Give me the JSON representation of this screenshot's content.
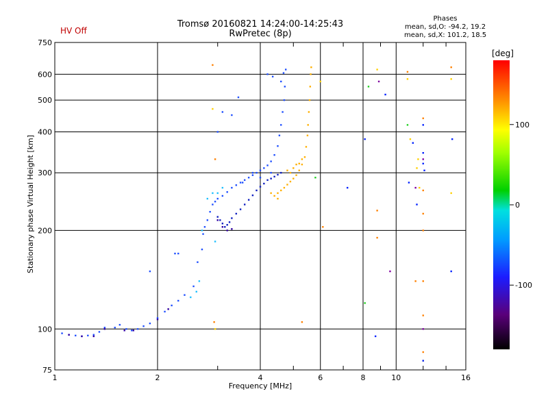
{
  "header": {
    "title_line1": "Tromsø 20160821 14:24:00-14:25:43",
    "title_line2": "RwPretec (8p)",
    "status": "HV Off"
  },
  "phases": {
    "heading": "Phases",
    "line_o": "mean, sd,O: -94.2, 19.2",
    "line_x": "mean, sd,X: 101.2, 18.5"
  },
  "chart_data": {
    "type": "scatter",
    "xlabel": "Frequency [MHz]",
    "ylabel": "Stationary phase Virtual Height [km]",
    "xscale": "log",
    "yscale": "log",
    "xlim": [
      1,
      16
    ],
    "ylim": [
      75,
      750
    ],
    "x_ticks": [
      1,
      2,
      4,
      6,
      8,
      10,
      16
    ],
    "x_minor": [
      3,
      5,
      7,
      9,
      12,
      14
    ],
    "y_ticks": [
      75,
      100,
      200,
      300,
      400,
      500,
      600,
      750
    ],
    "colorbar": {
      "label": "[deg]",
      "range": [
        -180,
        180
      ],
      "ticks": [
        100,
        0,
        -100
      ]
    },
    "grid": true,
    "series": [
      {
        "color": "#2050ff",
        "points": [
          [
            1.05,
            97
          ],
          [
            1.1,
            96
          ],
          [
            1.15,
            95.5
          ],
          [
            1.2,
            95
          ],
          [
            1.25,
            95.5
          ],
          [
            1.3,
            96
          ],
          [
            1.35,
            98
          ],
          [
            1.4,
            101
          ],
          [
            1.5,
            101
          ],
          [
            1.55,
            103
          ],
          [
            1.62,
            100
          ],
          [
            1.68,
            99
          ],
          [
            1.75,
            100
          ],
          [
            1.82,
            102
          ],
          [
            1.9,
            104
          ],
          [
            2.0,
            108
          ],
          [
            2.1,
            113
          ],
          [
            2.2,
            118
          ],
          [
            2.3,
            122
          ],
          [
            2.4,
            127
          ],
          [
            2.55,
            135
          ],
          [
            2.62,
            160
          ],
          [
            2.7,
            175
          ],
          [
            2.72,
            195
          ],
          [
            2.75,
            205
          ],
          [
            2.8,
            215
          ],
          [
            2.85,
            228
          ],
          [
            2.9,
            240
          ],
          [
            2.95,
            245
          ],
          [
            3.0,
            250
          ],
          [
            3.1,
            255
          ],
          [
            3.2,
            262
          ],
          [
            3.3,
            270
          ],
          [
            3.4,
            275
          ],
          [
            3.5,
            280
          ],
          [
            3.6,
            285
          ],
          [
            3.7,
            290
          ],
          [
            3.8,
            295
          ],
          [
            3.9,
            300
          ],
          [
            4.0,
            305
          ],
          [
            4.1,
            310
          ],
          [
            4.2,
            316
          ],
          [
            4.3,
            325
          ],
          [
            4.4,
            340
          ],
          [
            4.5,
            362
          ],
          [
            4.55,
            390
          ],
          [
            4.6,
            420
          ],
          [
            4.65,
            460
          ],
          [
            4.7,
            500
          ],
          [
            4.72,
            550
          ],
          [
            4.75,
            620
          ],
          [
            2.25,
            170
          ],
          [
            2.3,
            170
          ],
          [
            1.9,
            150
          ],
          [
            3.0,
            400
          ],
          [
            3.1,
            460
          ],
          [
            3.3,
            450
          ],
          [
            3.45,
            510
          ],
          [
            4.2,
            600
          ],
          [
            4.35,
            590
          ],
          [
            4.6,
            570
          ],
          [
            4.68,
            605
          ],
          [
            3.55,
            280
          ],
          [
            3.8,
            300
          ],
          [
            4.0,
            290
          ],
          [
            4.3,
            300
          ]
        ]
      },
      {
        "color": "#1020c0",
        "points": [
          [
            3.0,
            220
          ],
          [
            3.05,
            215
          ],
          [
            3.1,
            210
          ],
          [
            3.15,
            205
          ],
          [
            3.2,
            208
          ],
          [
            3.25,
            212
          ],
          [
            3.3,
            218
          ],
          [
            3.4,
            225
          ],
          [
            3.5,
            232
          ],
          [
            3.6,
            240
          ],
          [
            3.7,
            248
          ],
          [
            3.8,
            256
          ],
          [
            3.9,
            265
          ],
          [
            4.0,
            272
          ],
          [
            4.1,
            278
          ],
          [
            4.2,
            285
          ],
          [
            4.3,
            288
          ],
          [
            4.4,
            292
          ],
          [
            4.5,
            296
          ],
          [
            4.6,
            300
          ]
        ]
      },
      {
        "color": "#3000a0",
        "points": [
          [
            1.1,
            96
          ],
          [
            1.2,
            95
          ],
          [
            1.3,
            95
          ],
          [
            1.4,
            100
          ],
          [
            1.6,
            99
          ],
          [
            1.7,
            99
          ],
          [
            2.0,
            107
          ],
          [
            2.15,
            115
          ],
          [
            3.0,
            215
          ],
          [
            3.1,
            205
          ],
          [
            3.2,
            200
          ],
          [
            3.3,
            202
          ]
        ]
      },
      {
        "color": "#20c0ff",
        "points": [
          [
            2.5,
            125
          ],
          [
            2.6,
            130
          ],
          [
            2.65,
            140
          ],
          [
            2.7,
            200
          ],
          [
            2.8,
            250
          ],
          [
            2.9,
            260
          ],
          [
            2.95,
            185
          ],
          [
            3.0,
            260
          ],
          [
            3.1,
            270
          ]
        ]
      },
      {
        "color": "#ffb000",
        "points": [
          [
            4.4,
            255
          ],
          [
            4.5,
            260
          ],
          [
            4.6,
            265
          ],
          [
            4.7,
            270
          ],
          [
            4.8,
            276
          ],
          [
            4.9,
            282
          ],
          [
            5.0,
            288
          ],
          [
            5.1,
            295
          ],
          [
            5.2,
            305
          ],
          [
            5.3,
            318
          ],
          [
            5.4,
            335
          ],
          [
            5.45,
            360
          ],
          [
            5.5,
            390
          ],
          [
            5.52,
            420
          ],
          [
            5.55,
            460
          ],
          [
            5.58,
            500
          ],
          [
            5.6,
            550
          ],
          [
            5.62,
            600
          ],
          [
            5.64,
            630
          ],
          [
            4.8,
            305
          ],
          [
            4.9,
            300
          ],
          [
            5.0,
            310
          ],
          [
            5.1,
            318
          ],
          [
            5.2,
            320
          ],
          [
            5.3,
            330
          ],
          [
            4.3,
            260
          ],
          [
            4.5,
            250
          ]
        ]
      },
      {
        "color": "#ff8000",
        "points": [
          [
            2.9,
            640
          ],
          [
            2.95,
            330
          ],
          [
            2.93,
            105
          ],
          [
            5.3,
            105
          ],
          [
            6.1,
            205
          ],
          [
            8.8,
            190
          ],
          [
            8.8,
            230
          ],
          [
            12.0,
            440
          ],
          [
            12.0,
            265
          ],
          [
            12.0,
            140
          ],
          [
            12.0,
            110
          ],
          [
            12.0,
            85
          ],
          [
            12.0,
            200
          ],
          [
            12.0,
            225
          ],
          [
            14.5,
            630
          ],
          [
            11.4,
            140
          ],
          [
            10.8,
            610
          ]
        ]
      },
      {
        "color": "#ffd000",
        "points": [
          [
            2.9,
            470
          ],
          [
            2.95,
            100
          ],
          [
            6.0,
            570
          ],
          [
            8.8,
            620
          ],
          [
            10.8,
            580
          ],
          [
            11.0,
            380
          ],
          [
            11.5,
            310
          ],
          [
            14.5,
            580
          ],
          [
            14.5,
            260
          ],
          [
            12.0,
            80
          ],
          [
            11.6,
            330
          ],
          [
            11.7,
            270
          ]
        ]
      },
      {
        "color": "#0020ff",
        "points": [
          [
            7.2,
            270
          ],
          [
            8.1,
            380
          ],
          [
            8.7,
            95
          ],
          [
            9.3,
            520
          ],
          [
            10.9,
            280
          ],
          [
            11.2,
            370
          ],
          [
            12.0,
            345
          ],
          [
            12.0,
            320
          ],
          [
            12.1,
            305
          ],
          [
            12.0,
            420
          ],
          [
            14.6,
            380
          ],
          [
            14.5,
            150
          ],
          [
            11.5,
            240
          ],
          [
            12.0,
            80
          ]
        ]
      },
      {
        "color": "#20d020",
        "points": [
          [
            5.8,
            290
          ],
          [
            8.3,
            550
          ],
          [
            10.8,
            420
          ],
          [
            8.1,
            120
          ]
        ]
      },
      {
        "color": "#8000a0",
        "points": [
          [
            9.6,
            150
          ],
          [
            12.0,
            100
          ],
          [
            8.9,
            570
          ],
          [
            12.0,
            330
          ],
          [
            11.4,
            270
          ]
        ]
      }
    ]
  }
}
